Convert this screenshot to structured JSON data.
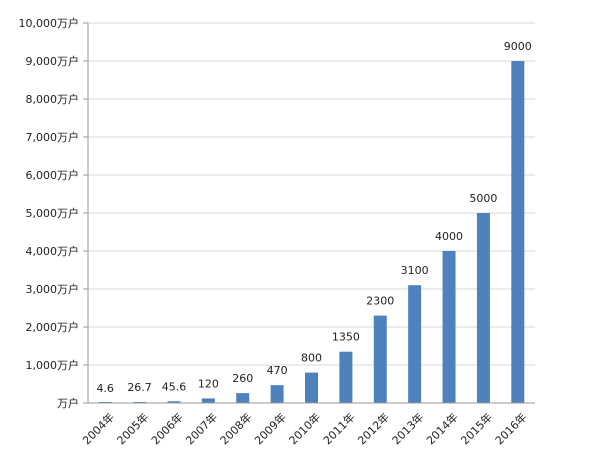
{
  "chart_data": {
    "type": "bar",
    "categories": [
      "2004年",
      "2005年",
      "2006年",
      "2007年",
      "2008年",
      "2009年",
      "2010年",
      "2011年",
      "2012年",
      "2013年",
      "2014年",
      "2015年",
      "2016年"
    ],
    "values": [
      4.6,
      26.7,
      45.6,
      120,
      260,
      470,
      800,
      1350,
      2300,
      3100,
      4000,
      5000,
      9000
    ],
    "data_labels": [
      "4.6",
      "26.7",
      "45.6",
      "120",
      "260",
      "470",
      "800",
      "1350",
      "2300",
      "3100",
      "4000",
      "5000",
      "9000"
    ],
    "y_ticks": [
      0,
      1000,
      2000,
      3000,
      4000,
      5000,
      6000,
      7000,
      8000,
      9000,
      10000
    ],
    "y_tick_labels": [
      "万户",
      "1,000万户",
      "2,000万户",
      "3,000万户",
      "4,000万户",
      "5,000万户",
      "6,000万户",
      "7,000万户",
      "8,000万户",
      "9,000万户",
      "10,000万户"
    ],
    "ylim": [
      0,
      10000
    ],
    "grid": true,
    "legend": "none",
    "title": "",
    "xlabel": "",
    "ylabel": "",
    "colors": {
      "bar": "#4f81bd",
      "grid": "#d9d9d9",
      "axis": "#9a9a9a"
    }
  }
}
